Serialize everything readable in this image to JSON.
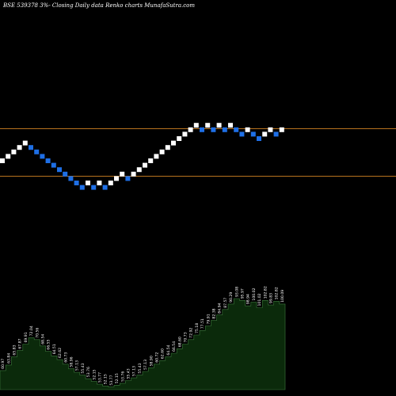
{
  "header": {
    "text": "BSE 539378  3%-  Closing Daily data  Renko  charts MunafaSutra.com"
  },
  "colors": {
    "background": "#000000",
    "up_brick": "#ffffff",
    "down_brick": "#1e6fe6",
    "guide_line": "#b8731f",
    "volume_fill": "#0b2a0b",
    "volume_stroke": "#3d7a3d"
  },
  "chart_data": {
    "type": "renko",
    "title": "BSE 539378  3%-  Closing Daily data  Renko  charts MunafaSutra.com",
    "brick_size_pct": 3,
    "guide_levels": [
      "upper",
      "lower"
    ],
    "bricks": [
      {
        "i": 0,
        "level": 0,
        "dir": "up"
      },
      {
        "i": 1,
        "level": 1,
        "dir": "up"
      },
      {
        "i": 2,
        "level": 2,
        "dir": "up"
      },
      {
        "i": 3,
        "level": 3,
        "dir": "up"
      },
      {
        "i": 4,
        "level": 4,
        "dir": "up"
      },
      {
        "i": 5,
        "level": 3,
        "dir": "down"
      },
      {
        "i": 6,
        "level": 2,
        "dir": "down"
      },
      {
        "i": 7,
        "level": 1,
        "dir": "down"
      },
      {
        "i": 8,
        "level": 0,
        "dir": "down"
      },
      {
        "i": 9,
        "level": -1,
        "dir": "down"
      },
      {
        "i": 10,
        "level": -2,
        "dir": "down"
      },
      {
        "i": 11,
        "level": -3,
        "dir": "down"
      },
      {
        "i": 12,
        "level": -4,
        "dir": "down"
      },
      {
        "i": 13,
        "level": -5,
        "dir": "down"
      },
      {
        "i": 14,
        "level": -6,
        "dir": "down"
      },
      {
        "i": 15,
        "level": -5,
        "dir": "up"
      },
      {
        "i": 16,
        "level": -6,
        "dir": "down"
      },
      {
        "i": 17,
        "level": -5,
        "dir": "up"
      },
      {
        "i": 18,
        "level": -6,
        "dir": "down"
      },
      {
        "i": 19,
        "level": -5,
        "dir": "up"
      },
      {
        "i": 20,
        "level": -4,
        "dir": "up"
      },
      {
        "i": 21,
        "level": -3,
        "dir": "up"
      },
      {
        "i": 22,
        "level": -4,
        "dir": "down"
      },
      {
        "i": 23,
        "level": -3,
        "dir": "up"
      },
      {
        "i": 24,
        "level": -2,
        "dir": "up"
      },
      {
        "i": 25,
        "level": -1,
        "dir": "up"
      },
      {
        "i": 26,
        "level": 0,
        "dir": "up"
      },
      {
        "i": 27,
        "level": 1,
        "dir": "up"
      },
      {
        "i": 28,
        "level": 2,
        "dir": "up"
      },
      {
        "i": 29,
        "level": 3,
        "dir": "up"
      },
      {
        "i": 30,
        "level": 4,
        "dir": "up"
      },
      {
        "i": 31,
        "level": 5,
        "dir": "up"
      },
      {
        "i": 32,
        "level": 6,
        "dir": "up"
      },
      {
        "i": 33,
        "level": 7,
        "dir": "up"
      },
      {
        "i": 34,
        "level": 8,
        "dir": "up"
      },
      {
        "i": 35,
        "level": 7,
        "dir": "down"
      },
      {
        "i": 36,
        "level": 8,
        "dir": "up"
      },
      {
        "i": 37,
        "level": 7,
        "dir": "down"
      },
      {
        "i": 38,
        "level": 8,
        "dir": "up"
      },
      {
        "i": 39,
        "level": 7,
        "dir": "down"
      },
      {
        "i": 40,
        "level": 8,
        "dir": "up"
      },
      {
        "i": 41,
        "level": 7,
        "dir": "down"
      },
      {
        "i": 42,
        "level": 6,
        "dir": "down"
      },
      {
        "i": 43,
        "level": 7,
        "dir": "up"
      },
      {
        "i": 44,
        "level": 6,
        "dir": "down"
      },
      {
        "i": 45,
        "level": 5,
        "dir": "down"
      },
      {
        "i": 46,
        "level": 6,
        "dir": "up"
      },
      {
        "i": 47,
        "level": 7,
        "dir": "up"
      },
      {
        "i": 48,
        "level": 6,
        "dir": "down"
      },
      {
        "i": 49,
        "level": 7,
        "dir": "up"
      }
    ],
    "volume_labels": [
      "60.97",
      "63.84",
      "65.83",
      "67.87",
      "69.91",
      "72.04",
      "70.56",
      "68.54",
      "66.55",
      "64.51",
      "62.62",
      "60.73",
      "58.96",
      "57.13",
      "55.43",
      "53.76",
      "52.15",
      "53.77",
      "52.15",
      "53.77",
      "52.15",
      "53.76",
      "55.43",
      "57.13",
      "55.43",
      "57.13",
      "58.90",
      "60.72",
      "62.60",
      "64.54",
      "66.54",
      "68.60",
      "70.73",
      "72.92",
      "75.18",
      "77.51",
      "79.91",
      "82.38",
      "84.94",
      "87.57",
      "90.29",
      "93.08",
      "95.97",
      "98.94",
      "100.02",
      "101.02",
      "102.82",
      "99.83",
      "102.82",
      "100.09"
    ],
    "volume_heights": [
      0.21,
      0.27,
      0.36,
      0.43,
      0.5,
      0.57,
      0.55,
      0.48,
      0.42,
      0.37,
      0.33,
      0.28,
      0.23,
      0.19,
      0.16,
      0.12,
      0.09,
      0.06,
      0.04,
      0.03,
      0.05,
      0.07,
      0.1,
      0.13,
      0.16,
      0.2,
      0.24,
      0.28,
      0.32,
      0.36,
      0.4,
      0.45,
      0.5,
      0.55,
      0.6,
      0.65,
      0.7,
      0.76,
      0.82,
      0.88,
      0.94,
      1.0,
      0.98,
      0.92,
      0.96,
      0.9,
      0.98,
      0.93,
      0.97,
      0.94
    ]
  }
}
